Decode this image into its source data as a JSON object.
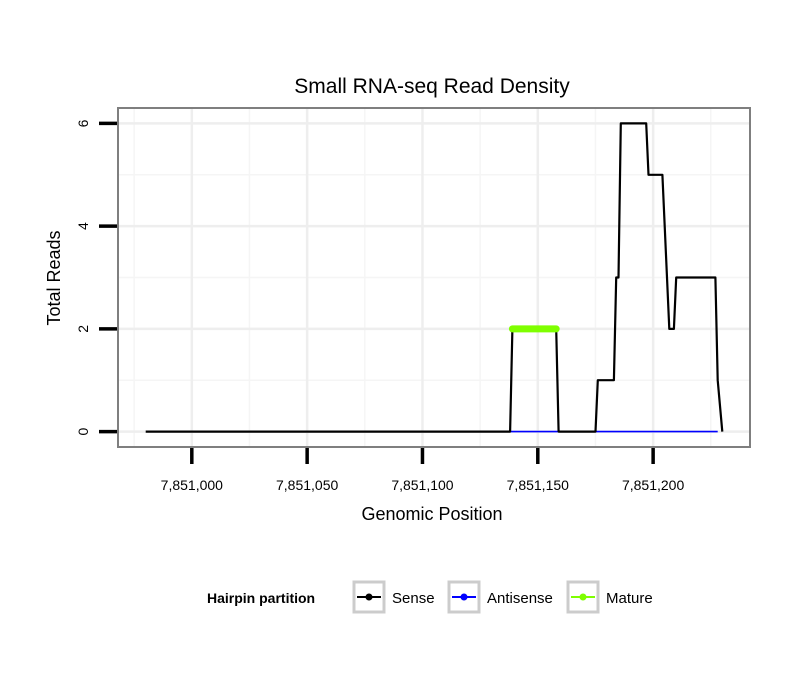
{
  "chart_data": {
    "type": "line",
    "title": "Small RNA-seq Read Density",
    "xlabel": "Genomic Position",
    "ylabel": "Total Reads",
    "xlim": [
      7850968,
      7851242
    ],
    "ylim": [
      -0.3,
      6.3
    ],
    "x_ticks": [
      {
        "value": 7851000,
        "label": "7,851,000"
      },
      {
        "value": 7851050,
        "label": "7,851,050"
      },
      {
        "value": 7851100,
        "label": "7,851,100"
      },
      {
        "value": 7851150,
        "label": "7,851,150"
      },
      {
        "value": 7851200,
        "label": "7,851,200"
      }
    ],
    "y_ticks": [
      {
        "value": 0,
        "label": "0"
      },
      {
        "value": 2,
        "label": "2"
      },
      {
        "value": 4,
        "label": "4"
      },
      {
        "value": 6,
        "label": "6"
      }
    ],
    "grid": true,
    "legend": {
      "title": "Hairpin partition",
      "position": "bottom",
      "entries": [
        {
          "name": "Sense",
          "color": "#000000"
        },
        {
          "name": "Antisense",
          "color": "#0000ff"
        },
        {
          "name": "Mature",
          "color": "#7fff00"
        }
      ]
    },
    "series": [
      {
        "name": "Sense",
        "color": "#000000",
        "x": [
          7850980,
          7851138,
          7851139,
          7851158,
          7851159,
          7851175,
          7851176,
          7851179,
          7851180,
          7851183,
          7851184,
          7851185,
          7851186,
          7851197,
          7851198,
          7851203,
          7851204,
          7851205,
          7851207,
          7851208,
          7851209,
          7851210,
          7851226,
          7851227,
          7851228,
          7851230
        ],
        "values": [
          0,
          0,
          2,
          2,
          0,
          0,
          1,
          1,
          1,
          1,
          3,
          3,
          6,
          6,
          5,
          5,
          5,
          4,
          2,
          2,
          2,
          3,
          3,
          3,
          1,
          0
        ]
      },
      {
        "name": "Antisense",
        "color": "#0000ff",
        "x": [
          7851138,
          7851228
        ],
        "values": [
          0,
          0
        ]
      },
      {
        "name": "Mature",
        "color": "#7fff00",
        "x": [
          7851139,
          7851158
        ],
        "values": [
          2,
          2
        ]
      }
    ]
  }
}
